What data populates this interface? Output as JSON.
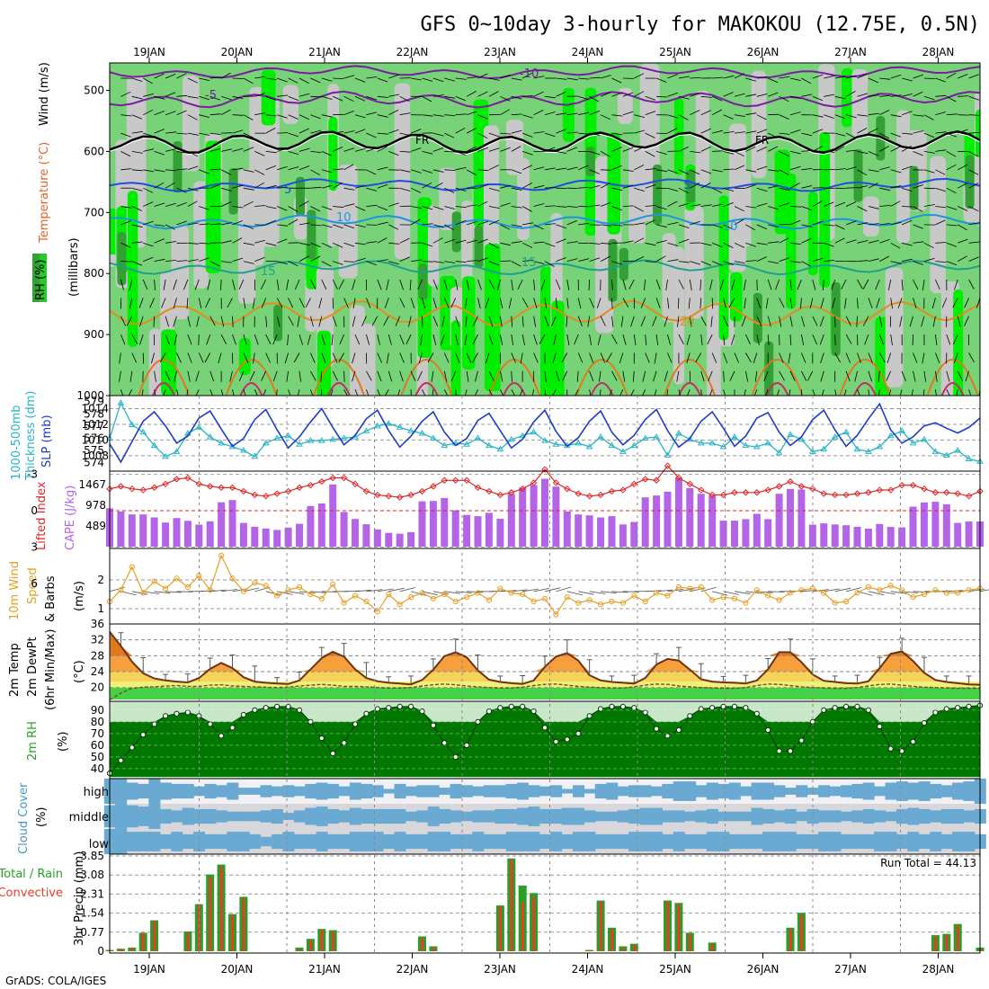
{
  "title": "GFS 0~10day 3-hourly for MAKOKOU (12.75E, 0.5N)",
  "credit": "GrADS: COLA/IGES",
  "date_labels": [
    "19JAN",
    "20JAN",
    "21JAN",
    "22JAN",
    "23JAN",
    "24JAN",
    "25JAN",
    "26JAN",
    "27JAN",
    "28JAN"
  ],
  "colors": {
    "rh_dark": "#32a032",
    "rh_mid": "#78d278",
    "rh_bright": "#00ee00",
    "rh_gray": "#c8c8c8",
    "slp": "#1e3cc8",
    "thick": "#28b4c8",
    "li": "#dc2828",
    "cape": "#b464e6",
    "wind": "#e6a028",
    "precip_total": "#28a028",
    "precip_conv": "#e63c28",
    "cloud": "#6aaad2"
  },
  "panels": {
    "upper": {
      "y_label_1": "RH (%)",
      "y_label_2": "Temperature (°C)",
      "y_label_3": "Wind (m/s)",
      "y_label_4": "(millibars)",
      "ticks": [
        "500",
        "600",
        "700",
        "800",
        "900",
        "1000"
      ]
    },
    "slp": {
      "y_label_1": "1000-500mb",
      "y_label_2": "Thickness (dm)",
      "y_label_3": "SLP (mb)",
      "left_ticks": [
        "579",
        "578",
        "577",
        "576",
        "575",
        "574"
      ],
      "right_ticks": [
        "1014",
        "1012",
        "1010",
        "1008"
      ]
    },
    "cape": {
      "y_label_1": "Lifted Index",
      "y_label_2": "CAPE (J/kg)",
      "left_ticks": [
        "-3",
        "0",
        "3",
        "6"
      ],
      "right_ticks": [
        "1467",
        "978",
        "489"
      ]
    },
    "wind": {
      "y_label_1": "10m Wind",
      "y_label_2": "Speed",
      "y_label_3": "& Barbs",
      "y_label_4": "(m/s)",
      "ticks": [
        "2",
        "1"
      ]
    },
    "temp": {
      "y_label_1": "2m Temp",
      "y_label_2": "2m DewPt",
      "y_label_3": "(6hr Min/Max)",
      "y_label_4": "(°C)",
      "ticks": [
        "36",
        "32",
        "28",
        "24",
        "20"
      ]
    },
    "rh": {
      "y_label_1": "2m RH",
      "y_label_2": "(%)",
      "ticks": [
        "90",
        "80",
        "70",
        "60",
        "50",
        "40"
      ]
    },
    "cloud": {
      "y_label_1": "Cloud Cover",
      "y_label_2": "(%)",
      "ticks": [
        "high",
        "middle",
        "low"
      ]
    },
    "precip": {
      "y_label_1": "Total / Rain",
      "y_label_2": "Convective",
      "y_label_3": "3hr Precip (mm)",
      "ticks": [
        "3.85",
        "3.08",
        "2.31",
        "1.54",
        "0.77",
        "0"
      ],
      "run_total": "Run Total = 44.13"
    }
  },
  "chart_data": {
    "type": "meteogram",
    "steps_per_day": 8,
    "contour_labels": {
      "temp_levels": [
        "-10",
        "-5",
        "FR",
        "5",
        "10",
        "15",
        "20"
      ]
    },
    "slp_mb": [
      1009.5,
      1007.2,
      1009.8,
      1012.4,
      1013.6,
      1011.8,
      1009.6,
      1010.5,
      1012.8,
      1013.7,
      1011.4,
      1009.2,
      1010.2,
      1012.6,
      1013.9,
      1011.3,
      1009.0,
      1010.4,
      1012.3,
      1014.0,
      1011.6,
      1009.4,
      1010.6,
      1012.7,
      1013.8,
      1011.2,
      1009.1,
      1010.5,
      1012.4,
      1013.6,
      1011.0,
      1009.3,
      1010.2,
      1012.5,
      1013.4,
      1011.2,
      1009.0,
      1010.1,
      1012.3,
      1013.8,
      1011.1,
      1009.2,
      1010.3,
      1012.4,
      1013.7,
      1011.0,
      1009.4,
      1010.6,
      1012.6,
      1013.9,
      1011.2,
      1009.1,
      1010.2,
      1012.4,
      1013.6,
      1011.5,
      1009.2,
      1010.5,
      1012.8,
      1013.5,
      1011.0,
      1009.3,
      1010.4,
      1012.6,
      1013.8,
      1011.3,
      1009.2,
      1010.6,
      1012.7,
      1014.6,
      1011.3,
      1009.6,
      1010.4,
      1011.8,
      1012.2,
      1011.5,
      1010.9,
      1011.6,
      1012.8
    ],
    "thickness_dm": [
      576.0,
      578.9,
      577.1,
      576.5,
      575.4,
      574.5,
      574.9,
      576.4,
      576.9,
      576.1,
      575.6,
      575.3,
      575.0,
      574.5,
      575.6,
      576.0,
      576.2,
      575.5,
      575.8,
      575.8,
      575.9,
      576.0,
      576.1,
      576.6,
      577.0,
      577.2,
      576.9,
      576.6,
      576.4,
      576.0,
      575.4,
      575.6,
      575.5,
      576.0,
      575.4,
      575.1,
      575.9,
      576.2,
      576.5,
      575.8,
      575.5,
      575.4,
      575.6,
      575.3,
      576.1,
      575.4,
      574.9,
      575.4,
      576.0,
      576.1,
      574.6,
      576.4,
      575.9,
      575.6,
      575.6,
      575.3,
      576.1,
      575.4,
      575.3,
      575.6,
      574.8,
      576.3,
      575.9,
      574.9,
      575.1,
      576.1,
      576.5,
      575.1,
      574.9,
      575.3,
      576.2,
      576.6,
      575.6,
      575.9,
      574.9,
      574.6,
      575.0,
      574.3,
      574.1
    ],
    "cape_jkg": [
      905,
      830,
      760,
      760,
      690,
      570,
      675,
      610,
      520,
      600,
      1050,
      1100,
      560,
      470,
      430,
      395,
      450,
      540,
      960,
      1020,
      1470,
      820,
      655,
      530,
      405,
      325,
      305,
      345,
      1070,
      1080,
      1150,
      860,
      750,
      720,
      800,
      660,
      1250,
      1395,
      1455,
      1605,
      1420,
      830,
      760,
      740,
      690,
      720,
      525,
      585,
      1165,
      1210,
      1300,
      1630,
      1385,
      1250,
      1205,
      615,
      615,
      650,
      775,
      650,
      1250,
      1365,
      1350,
      520,
      550,
      525,
      505,
      470,
      425,
      535,
      465,
      455,
      945,
      1045,
      1060,
      1000,
      560,
      595,
      595
    ],
    "lifted_index": [
      -1.8,
      -2.0,
      -1.8,
      -1.7,
      -1.9,
      -2.2,
      -2.6,
      -2.7,
      -2.2,
      -2.0,
      -1.9,
      -1.9,
      -1.6,
      -1.3,
      -1.2,
      -1.4,
      -1.6,
      -1.9,
      -2.1,
      -2.4,
      -2.7,
      -2.7,
      -2.2,
      -1.6,
      -1.3,
      -1.2,
      -1.1,
      -1.3,
      -1.6,
      -2.0,
      -2.5,
      -2.5,
      -2.5,
      -1.9,
      -1.6,
      -1.3,
      -1.5,
      -1.8,
      -2.3,
      -3.4,
      -2.3,
      -1.8,
      -1.4,
      -1.2,
      -1.3,
      -1.6,
      -1.7,
      -2.2,
      -2.6,
      -2.5,
      -3.7,
      -2.7,
      -2.2,
      -1.7,
      -1.3,
      -1.3,
      -1.5,
      -1.5,
      -1.5,
      -1.7,
      -2.0,
      -2.4,
      -2.0,
      -1.8,
      -1.4,
      -1.3,
      -1.3,
      -1.4,
      -1.5,
      -1.7,
      -1.7,
      -2.1,
      -2.1,
      -1.8,
      -1.5,
      -1.5,
      -1.4,
      -1.2,
      -1.6
    ],
    "wind10m_ms": [
      1.25,
      1.65,
      2.45,
      1.55,
      1.95,
      1.7,
      2.05,
      1.75,
      2.15,
      1.65,
      2.85,
      2.05,
      1.6,
      1.9,
      1.8,
      1.45,
      1.65,
      1.75,
      1.5,
      1.35,
      1.85,
      1.2,
      1.45,
      1.25,
      0.9,
      1.5,
      1.15,
      1.4,
      1.55,
      1.35,
      1.5,
      1.25,
      1.4,
      1.55,
      1.3,
      1.7,
      1.55,
      1.5,
      1.25,
      1.35,
      0.8,
      1.4,
      1.2,
      1.3,
      1.15,
      1.25,
      1.2,
      1.45,
      1.25,
      1.55,
      1.45,
      1.75,
      1.7,
      1.75,
      1.3,
      1.4,
      1.35,
      1.2,
      1.65,
      1.45,
      1.3,
      1.55,
      1.65,
      1.7,
      1.55,
      1.2,
      1.25,
      1.55,
      1.75,
      1.65,
      1.8,
      1.65,
      1.4,
      1.5,
      1.65,
      1.55,
      1.55,
      1.65,
      1.7
    ],
    "temp2m_c": [
      34.0,
      30.5,
      26.5,
      23.6,
      22.3,
      21.8,
      21.5,
      21.3,
      22.4,
      24.7,
      26.2,
      24.9,
      22.6,
      21.5,
      21.2,
      21.0,
      20.9,
      21.8,
      24.6,
      27.4,
      29.0,
      27.8,
      24.6,
      22.4,
      21.6,
      21.2,
      21.0,
      20.8,
      21.9,
      24.5,
      27.9,
      28.9,
      27.6,
      24.3,
      22.0,
      21.4,
      21.1,
      20.9,
      21.8,
      25.2,
      27.8,
      28.7,
      26.8,
      23.1,
      21.8,
      21.4,
      21.2,
      21.0,
      22.4,
      25.8,
      27.2,
      26.8,
      24.5,
      22.1,
      21.5,
      21.3,
      21.2,
      21.0,
      21.8,
      24.6,
      28.9,
      28.9,
      26.4,
      23.3,
      21.7,
      21.4,
      21.1,
      21.0,
      21.6,
      24.9,
      28.5,
      29.1,
      26.7,
      23.7,
      21.9,
      21.4,
      21.1,
      20.8,
      20.7
    ],
    "dewpt2m_c": [
      16.9,
      18.6,
      19.8,
      20.1,
      20.2,
      20.4,
      20.5,
      20.3,
      20.3,
      20.6,
      20.7,
      20.4,
      20.3,
      20.2,
      20.1,
      20.0,
      20.1,
      20.4,
      20.6,
      20.8,
      20.6,
      20.3,
      20.3,
      20.2,
      20.0,
      19.9,
      19.9,
      20.0,
      20.4,
      20.7,
      20.9,
      20.7,
      20.4,
      20.2,
      20.0,
      19.9,
      19.9,
      20.1,
      20.5,
      20.8,
      20.9,
      20.6,
      20.3,
      20.1,
      20.0,
      19.9,
      19.9,
      20.2,
      20.6,
      20.9,
      20.8,
      20.4,
      20.2,
      20.0,
      19.9,
      19.8,
      19.8,
      20.0,
      20.5,
      20.9,
      20.8,
      20.5,
      20.2,
      20.0,
      19.9,
      19.8,
      19.8,
      20.0,
      20.4,
      20.8,
      20.9,
      20.6,
      20.3,
      20.1,
      20.0,
      19.9,
      19.8,
      19.8,
      19.8
    ],
    "rh2m_pct": [
      36,
      47,
      58,
      69,
      78,
      85,
      87,
      88,
      85,
      78,
      68,
      75,
      86,
      90,
      92,
      93,
      93,
      90,
      80,
      66,
      53,
      62,
      78,
      87,
      91,
      92,
      93,
      93,
      89,
      77,
      62,
      50,
      60,
      80,
      89,
      92,
      93,
      93,
      89,
      75,
      63,
      65,
      70,
      85,
      91,
      93,
      93,
      92,
      88,
      74,
      68,
      73,
      85,
      91,
      92,
      93,
      93,
      92,
      87,
      73,
      55,
      55,
      64,
      80,
      90,
      92,
      93,
      93,
      90,
      76,
      57,
      55,
      63,
      79,
      88,
      91,
      92,
      93,
      94
    ],
    "cloud_high_pct": [
      100,
      100,
      68,
      58,
      100,
      68,
      58,
      58,
      38,
      58,
      48,
      68,
      28,
      28,
      48,
      38,
      48,
      38,
      58,
      68,
      58,
      38,
      68,
      58,
      48,
      18,
      58,
      38,
      48,
      48,
      28,
      58,
      48,
      38,
      48,
      48,
      58,
      68,
      48,
      38,
      48,
      18,
      48,
      18,
      58,
      68,
      38,
      48,
      48,
      38,
      58,
      78,
      78,
      48,
      68,
      58,
      68,
      38,
      68,
      68,
      48,
      28,
      48,
      28,
      48,
      38,
      48,
      58,
      68,
      38,
      68,
      78,
      68,
      78,
      58,
      48,
      68,
      78,
      100
    ],
    "cloud_mid_pct": [
      88,
      100,
      88,
      78,
      100,
      58,
      48,
      68,
      58,
      58,
      48,
      38,
      38,
      38,
      48,
      58,
      28,
      48,
      68,
      78,
      58,
      48,
      68,
      58,
      58,
      58,
      58,
      38,
      48,
      78,
      58,
      48,
      38,
      48,
      48,
      58,
      58,
      68,
      78,
      58,
      58,
      68,
      68,
      48,
      38,
      38,
      48,
      58,
      68,
      68,
      48,
      48,
      38,
      48,
      58,
      38,
      38,
      38,
      68,
      58,
      48,
      58,
      38,
      58,
      48,
      48,
      38,
      48,
      58,
      48,
      38,
      58,
      68,
      58,
      48,
      58,
      58,
      48,
      58
    ],
    "cloud_low_pct": [
      100,
      100,
      78,
      78,
      78,
      58,
      78,
      58,
      78,
      58,
      58,
      78,
      78,
      58,
      38,
      58,
      78,
      58,
      58,
      78,
      58,
      58,
      78,
      78,
      78,
      58,
      78,
      58,
      58,
      78,
      78,
      58,
      58,
      78,
      58,
      58,
      78,
      78,
      78,
      58,
      78,
      58,
      78,
      78,
      58,
      58,
      58,
      78,
      78,
      78,
      58,
      78,
      58,
      58,
      78,
      78,
      58,
      58,
      58,
      78,
      78,
      78,
      58,
      58,
      78,
      78,
      58,
      58,
      58,
      78,
      78,
      58,
      78,
      58,
      78,
      58,
      78,
      78,
      58
    ],
    "precip_total_mm": [
      0.05,
      0.1,
      0.15,
      0.75,
      1.25,
      0,
      0,
      0.8,
      1.9,
      3.1,
      3.5,
      1.5,
      2.2,
      0,
      0,
      0,
      0,
      0.15,
      0.5,
      0.9,
      0.85,
      0,
      0,
      0,
      0,
      0,
      0,
      0,
      0.6,
      0.2,
      0,
      0,
      0,
      0,
      0,
      1.85,
      3.75,
      2.65,
      2.35,
      0,
      0,
      0,
      0,
      0.05,
      2.05,
      0.95,
      0.2,
      0.3,
      0,
      0,
      2.05,
      1.95,
      0.75,
      0,
      0.35,
      0,
      0,
      0,
      0,
      0,
      0,
      0.95,
      1.55,
      0,
      0,
      0,
      0,
      0,
      0,
      0,
      0,
      0,
      0,
      0,
      0.65,
      0.7,
      1.1,
      0,
      0.15
    ],
    "precip_conv_mm": [
      0.05,
      0.1,
      0.15,
      0.75,
      1.2,
      0,
      0,
      0.75,
      1.9,
      3.0,
      3.4,
      1.45,
      2.15,
      0,
      0,
      0,
      0,
      0.1,
      0.45,
      0.85,
      0.8,
      0,
      0,
      0,
      0,
      0,
      0,
      0,
      0.55,
      0.15,
      0,
      0,
      0,
      0,
      0,
      1.8,
      3.7,
      2.0,
      2.2,
      0,
      0,
      0,
      0,
      0.05,
      2.0,
      0.9,
      0.15,
      0.25,
      0,
      0,
      2.0,
      1.9,
      0.7,
      0,
      0.3,
      0,
      0,
      0,
      0,
      0,
      0,
      0.9,
      1.45,
      0,
      0,
      0,
      0,
      0,
      0,
      0,
      0,
      0,
      0,
      0,
      0.6,
      0.65,
      1.05,
      0,
      0.1
    ]
  }
}
